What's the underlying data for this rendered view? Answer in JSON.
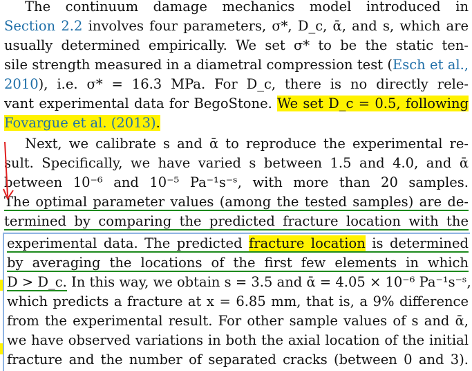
{
  "paragraph1": {
    "l1": "The continuum damage mechanics model introduced in",
    "l2_cite": "Section 2.2",
    "l2_rest": " involves four parameters, σ*, D_c, ᾱ, and s, which are",
    "l3": "usually determined empirically. We set σ* to be the static ten-",
    "l4_pre": "sile strength measured in a diametral compression test (",
    "l4_cite": "Esch et al.,",
    "l5_cite": "2010",
    "l5_rest": "), i.e. σ* = 16.3 MPa. For D_c, there is no directly rele-",
    "l6_pre": "vant experimental data for BegoStone. ",
    "l6_hl": "We set D_c = 0.5, following",
    "l7_cite": "Fovargue et al. (2013)",
    "l7_dot": "."
  },
  "paragraph2": {
    "l1": "Next, we calibrate s and ᾱ to reproduce the experimental re-",
    "l2": "sult. Specifically, we have varied s between 1.5 and 4.0, and ᾱ",
    "l3": "between 10⁻⁶ and 10⁻⁵ Pa⁻¹s⁻ˢ, with more than 20 samples.",
    "l4": "The optimal parameter values (among the tested samples) are de-",
    "l5": "termined by comparing the predicted fracture location with the",
    "l6_a": "experimental data. The predicted ",
    "l6_hl": "fracture location",
    "l6_b": " is determined",
    "l7": "by averaging the locations of the first few elements in which",
    "l8_ul": "D > D_c.",
    "l8_rest": " In this way, we obtain s = 3.5 and ᾱ = 4.05 × 10⁻⁶ Pa⁻¹s⁻ˢ,",
    "l9": "which predicts a fracture at x = 6.85 mm, that is, a 9% difference",
    "l10": "from the experimental result. For other sample values of s and ᾱ,",
    "l11": "we have observed variations in both the axial location of the initial",
    "l12": "fracture and the number of separated cracks (between 0 and 3)."
  },
  "colors": {
    "citation": "#1f6fa8",
    "highlight": "#fff200",
    "underline": "#1d8a1d",
    "annotation_arrow": "#e02020",
    "selection_border": "#8fb4e3"
  }
}
